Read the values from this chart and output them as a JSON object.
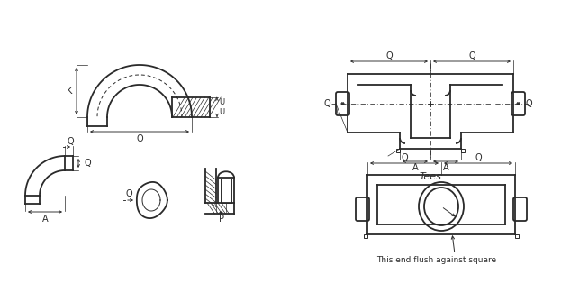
{
  "bg_color": "#ffffff",
  "lc": "#2a2a2a",
  "dc": "#2a2a2a",
  "lw_main": 1.3,
  "lw_thin": 0.7,
  "lw_dim": 0.65,
  "fs": 7.0,
  "label_K": "K",
  "label_O": "O",
  "label_Q": "Q",
  "label_U": "U",
  "label_A": "A",
  "label_P": "P",
  "label_Tees": "Tees",
  "label_flush": "This end flush against square"
}
